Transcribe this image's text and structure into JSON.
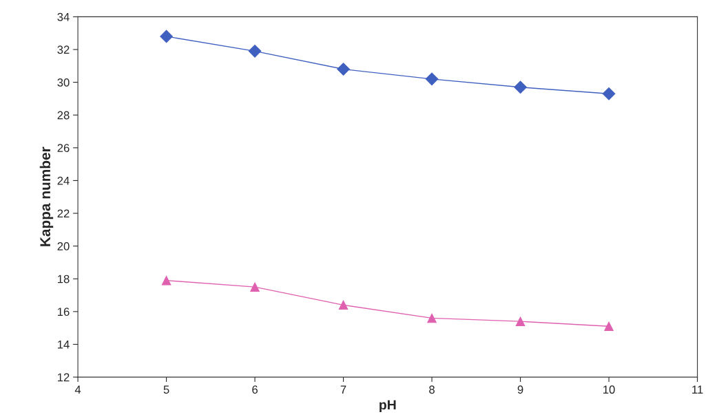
{
  "chart_data": {
    "type": "line",
    "xlabel": "pH",
    "ylabel": "Kappa number",
    "x": [
      5,
      6,
      7,
      8,
      9,
      10
    ],
    "series": [
      {
        "color": "#4060c0",
        "marker": "diamond",
        "values": [
          32.8,
          31.9,
          30.8,
          30.2,
          29.7,
          29.3
        ]
      },
      {
        "color": "#e060b0",
        "marker": "triangle",
        "values": [
          17.9,
          17.5,
          16.4,
          15.6,
          15.4,
          15.1
        ]
      }
    ],
    "xlim": [
      4,
      11
    ],
    "xticks": [
      4,
      5,
      6,
      7,
      8,
      9,
      10,
      11
    ],
    "ylim": [
      12,
      34
    ],
    "yticks": [
      12,
      14,
      16,
      18,
      20,
      22,
      24,
      26,
      28,
      30,
      32,
      34
    ],
    "grid": false,
    "line_style": "solid"
  }
}
